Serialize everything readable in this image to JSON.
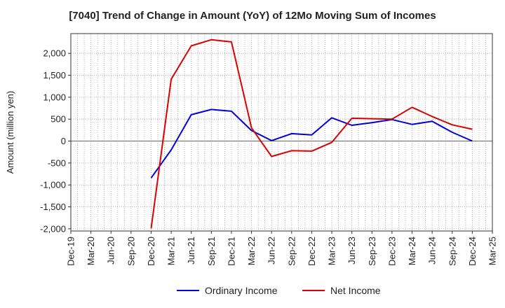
{
  "chart_data": {
    "type": "line",
    "title": "[7040]  Trend of Change in Amount (YoY) of 12Mo Moving Sum of Incomes",
    "xlabel": "",
    "ylabel": "Amount (million yen)",
    "x_ticks": [
      "Dec-19",
      "Mar-20",
      "Jun-20",
      "Sep-20",
      "Dec-20",
      "Mar-21",
      "Jun-21",
      "Sep-21",
      "Dec-21",
      "Mar-22",
      "Jun-22",
      "Sep-22",
      "Dec-22",
      "Mar-23",
      "Jun-23",
      "Sep-23",
      "Dec-23",
      "Mar-24",
      "Jun-24",
      "Sep-24",
      "Dec-24",
      "Mar-25"
    ],
    "y_ticks": [
      2000,
      1500,
      1000,
      500,
      0,
      -500,
      -1000,
      -1500,
      -2000
    ],
    "y_tick_labels": [
      "2,000",
      "1,500",
      "1,000",
      "500",
      "0",
      "-500",
      "-1,000",
      "-1,500",
      "-2,000"
    ],
    "ylim": [
      -2050,
      2450
    ],
    "grid": true,
    "legend_position": "bottom-center",
    "series": [
      {
        "name": "Ordinary Income",
        "color": "#0000dd",
        "x": [
          "Dec-20",
          "Mar-21",
          "Jun-21",
          "Sep-21",
          "Dec-21",
          "Mar-22",
          "Jun-22",
          "Sep-22",
          "Dec-22",
          "Mar-23",
          "Jun-23",
          "Sep-23",
          "Dec-23",
          "Mar-24",
          "Jun-24",
          "Sep-24",
          "Dec-24"
        ],
        "values": [
          -840,
          -200,
          600,
          720,
          680,
          240,
          10,
          170,
          140,
          530,
          360,
          420,
          490,
          380,
          450,
          200,
          0
        ]
      },
      {
        "name": "Net Income",
        "color": "#dd0000",
        "x": [
          "Dec-20",
          "Mar-21",
          "Jun-21",
          "Sep-21",
          "Dec-21",
          "Mar-22",
          "Jun-22",
          "Sep-22",
          "Dec-22",
          "Mar-23",
          "Jun-23",
          "Sep-23",
          "Dec-23",
          "Mar-24",
          "Jun-24",
          "Sep-24",
          "Dec-24"
        ],
        "values": [
          -1990,
          1410,
          2170,
          2310,
          2260,
          300,
          -350,
          -220,
          -230,
          -30,
          520,
          510,
          500,
          770,
          560,
          370,
          270
        ]
      }
    ]
  }
}
